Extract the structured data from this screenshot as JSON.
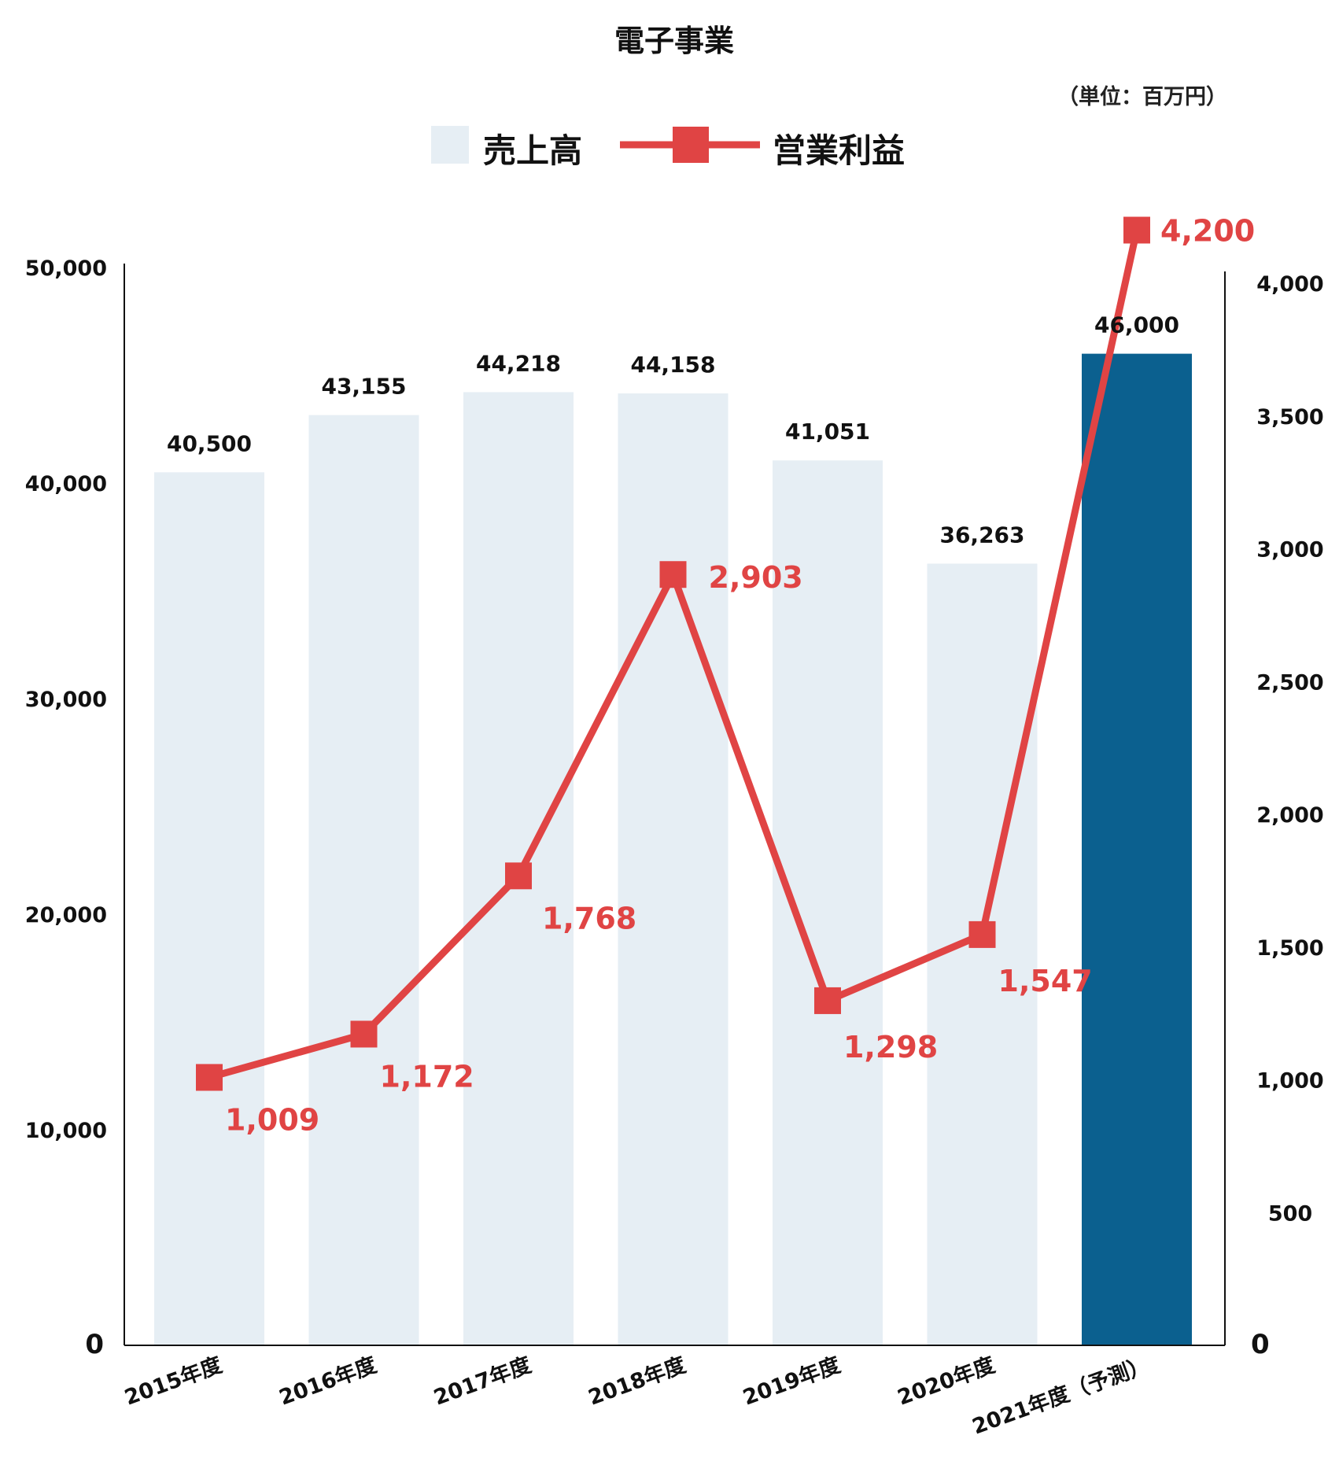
{
  "chart_data": {
    "type": "bar",
    "title": "電子事業",
    "unit_note": "（単位：百万円）",
    "categories": [
      "2015年度",
      "2016年度",
      "2017年度",
      "2018年度",
      "2019年度",
      "2020年度",
      "2021年度（予測）"
    ],
    "series": [
      {
        "name": "売上高",
        "type": "bar",
        "axis": "left",
        "values": [
          40500,
          43155,
          44218,
          44158,
          41051,
          36263,
          46000
        ],
        "labels": [
          "40,500",
          "43,155",
          "44,218",
          "44,158",
          "41,051",
          "36,263",
          "46,000"
        ],
        "color": "#e6eef4",
        "highlight_color": "#0b608f",
        "highlight_index": 6
      },
      {
        "name": "営業利益",
        "type": "line",
        "axis": "right",
        "values": [
          1009,
          1172,
          1768,
          2903,
          1298,
          1547,
          4200
        ],
        "labels": [
          "1,009",
          "1,172",
          "1,768",
          "2,903",
          "1,298",
          "1,547",
          "4,200"
        ],
        "color": "#e04444"
      }
    ],
    "left_axis": {
      "ylim": [
        0,
        50000
      ],
      "ticks": [
        0,
        10000,
        20000,
        30000,
        40000,
        50000
      ],
      "tick_labels": [
        "0",
        "10,000",
        "20,000",
        "30,000",
        "40,000",
        "50,000"
      ]
    },
    "right_axis": {
      "ylim": [
        0,
        4000
      ],
      "ticks": [
        0,
        500,
        1000,
        1500,
        2000,
        2500,
        3000,
        3500,
        4000
      ],
      "tick_labels": [
        "0",
        "500",
        "1,000",
        "1,500",
        "2,000",
        "2,500",
        "3,000",
        "3,500",
        "4,000"
      ]
    },
    "legend": {
      "position": "top-center"
    },
    "grid": false
  }
}
